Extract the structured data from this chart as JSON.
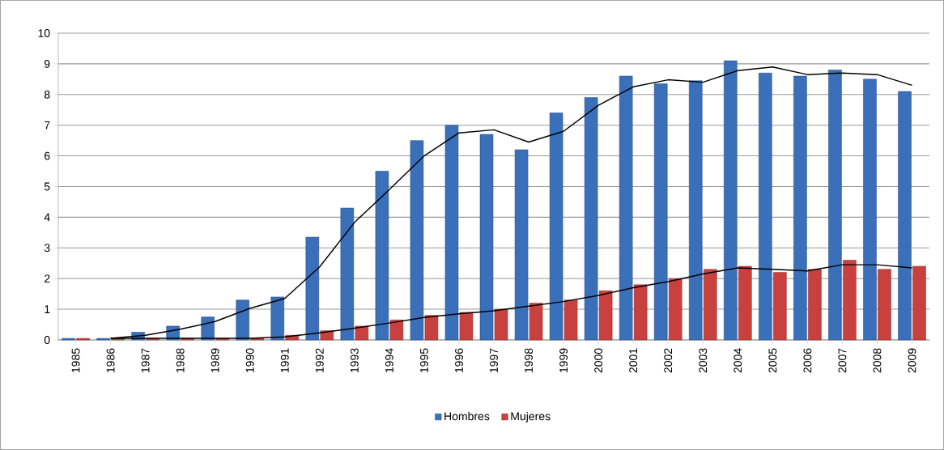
{
  "chart_data": {
    "type": "bar",
    "x": [
      1985,
      1986,
      1987,
      1988,
      1989,
      1990,
      1991,
      1992,
      1993,
      1994,
      1995,
      1996,
      1997,
      1998,
      1999,
      2000,
      2001,
      2002,
      2003,
      2004,
      2005,
      2006,
      2007,
      2008,
      2009
    ],
    "series": [
      {
        "name": "Hombres",
        "color": "#3a6fba",
        "values": [
          0.05,
          0.05,
          0.25,
          0.45,
          0.75,
          1.3,
          1.4,
          3.35,
          4.3,
          5.5,
          6.5,
          7.0,
          6.7,
          6.2,
          7.4,
          7.9,
          8.6,
          8.35,
          8.45,
          9.1,
          8.7,
          8.6,
          8.8,
          8.5,
          8.1
        ]
      },
      {
        "name": "Mujeres",
        "color": "#c9413e",
        "values": [
          0.05,
          0.05,
          0.05,
          0.05,
          0.05,
          0.05,
          0.15,
          0.3,
          0.45,
          0.65,
          0.8,
          0.9,
          1.0,
          1.2,
          1.3,
          1.6,
          1.8,
          2.0,
          2.3,
          2.4,
          2.2,
          2.3,
          2.6,
          2.3,
          2.4
        ]
      },
      {
        "type": "line",
        "color": "#000000",
        "x": [
          1986,
          1987,
          1988,
          1989,
          1990,
          1991,
          1992,
          1993,
          1994,
          1995,
          1996,
          1997,
          1998,
          1999,
          2000,
          2001,
          2002,
          2003,
          2004,
          2005,
          2006,
          2007,
          2008,
          2009
        ],
        "values": [
          0.05,
          0.15,
          0.35,
          0.6,
          1.03,
          1.35,
          2.38,
          3.83,
          4.9,
          6.0,
          6.75,
          6.85,
          6.45,
          6.8,
          7.65,
          8.25,
          8.48,
          8.4,
          8.78,
          8.9,
          8.65,
          8.7,
          8.65,
          8.3
        ]
      },
      {
        "type": "line",
        "color": "#000000",
        "x": [
          1986,
          1987,
          1988,
          1989,
          1990,
          1991,
          1992,
          1993,
          1994,
          1995,
          1996,
          1997,
          1998,
          1999,
          2000,
          2001,
          2002,
          2003,
          2004,
          2005,
          2006,
          2007,
          2008,
          2009
        ],
        "values": [
          0.05,
          0.05,
          0.05,
          0.05,
          0.05,
          0.1,
          0.23,
          0.38,
          0.55,
          0.73,
          0.85,
          0.95,
          1.1,
          1.25,
          1.45,
          1.7,
          1.9,
          2.15,
          2.35,
          2.3,
          2.25,
          2.45,
          2.45,
          2.35
        ]
      }
    ],
    "xlim": [
      1984.5,
      2009.5
    ],
    "xticks": [
      1985,
      1986,
      1987,
      1988,
      1989,
      1990,
      1991,
      1992,
      1993,
      1994,
      1995,
      1996,
      1997,
      1998,
      1999,
      2000,
      2001,
      2002,
      2003,
      2004,
      2005,
      2006,
      2007,
      2008,
      2009
    ],
    "ylim": [
      0,
      10
    ],
    "yticks": [
      0,
      1,
      2,
      3,
      4,
      5,
      6,
      7,
      8,
      9,
      10
    ],
    "grid": "y",
    "legend": "bottom"
  }
}
